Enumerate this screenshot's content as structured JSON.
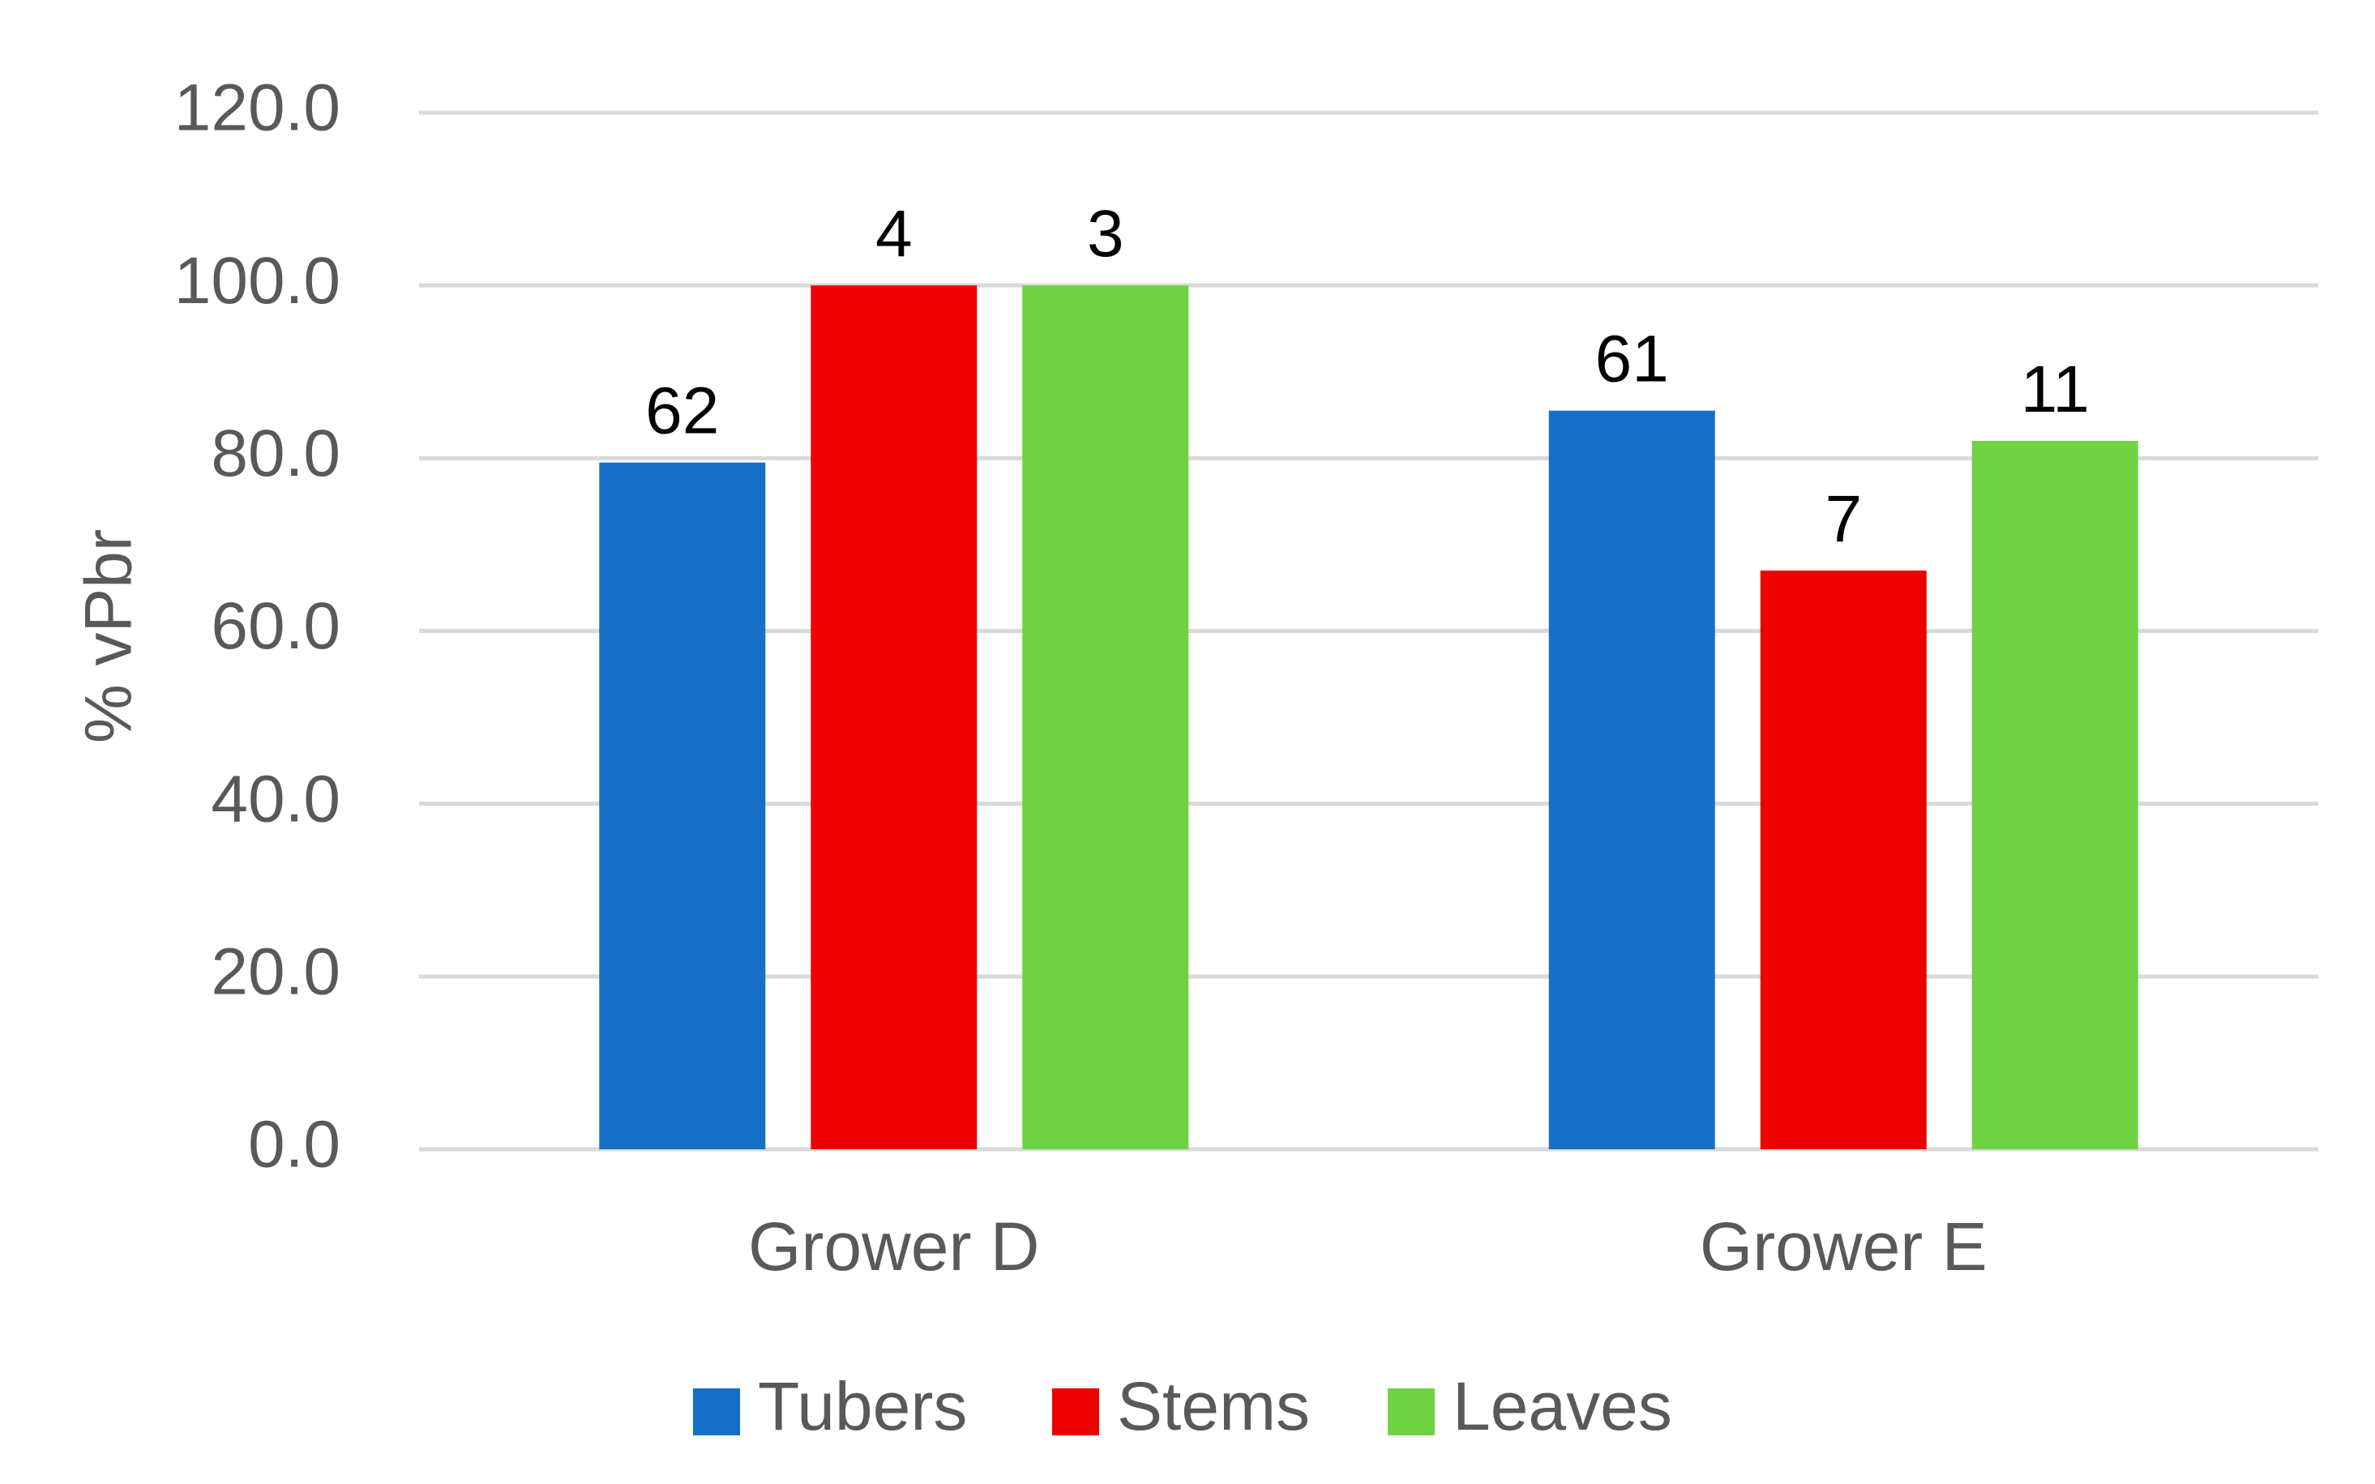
{
  "chart_data": {
    "type": "bar",
    "categories": [
      "Grower D",
      "Grower E"
    ],
    "series": [
      {
        "name": "Tubers",
        "values": [
          79.5,
          85.5
        ],
        "labels": [
          "62",
          "61"
        ],
        "color": "#1670C8"
      },
      {
        "name": "Stems",
        "values": [
          100.0,
          67.0
        ],
        "labels": [
          "4",
          "7"
        ],
        "color": "#EE0000"
      },
      {
        "name": "Leaves",
        "values": [
          100.0,
          82.0
        ],
        "labels": [
          "3",
          "11"
        ],
        "color": "#6FD243"
      }
    ],
    "ylabel": "% vPbr",
    "xlabel": "",
    "ylim": [
      0,
      120
    ],
    "yticks": [
      "0.0",
      "20.0",
      "40.0",
      "60.0",
      "80.0",
      "100.0",
      "120.0"
    ],
    "grid": true,
    "legend_position": "bottom"
  }
}
